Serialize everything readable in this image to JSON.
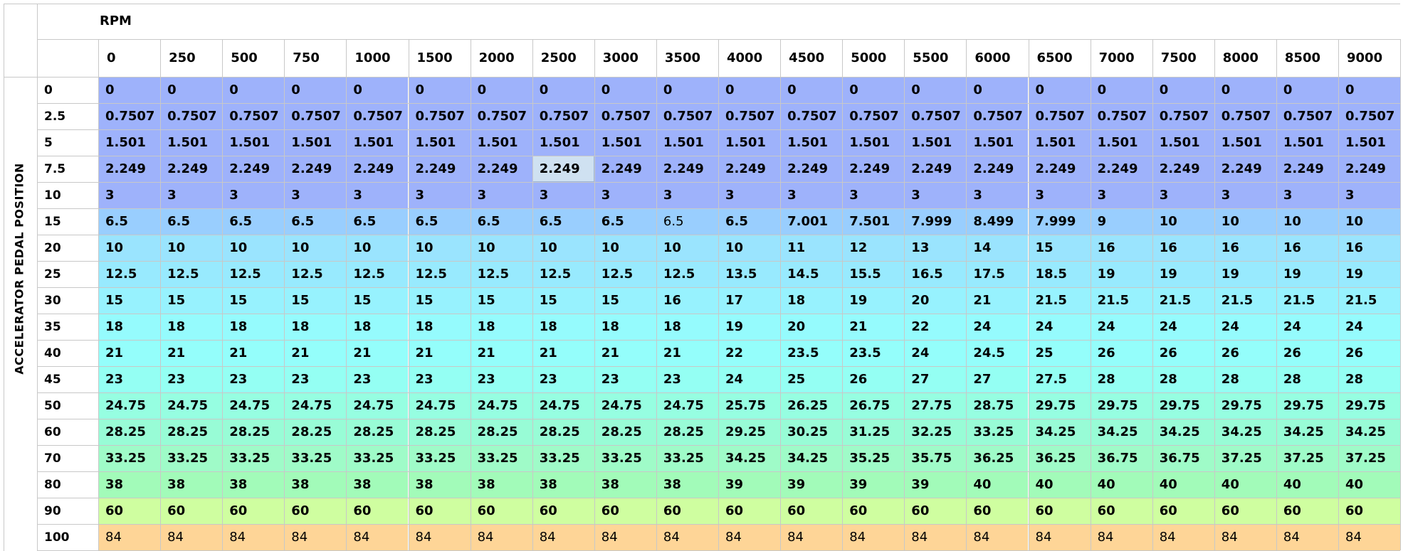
{
  "table": {
    "x_axis_title": "RPM",
    "y_axis_title": "ACCELERATOR PEDAL POSITION",
    "columns": [
      "0",
      "250",
      "500",
      "750",
      "1000",
      "1500",
      "2000",
      "2500",
      "3000",
      "3500",
      "4000",
      "4500",
      "5000",
      "5500",
      "6000",
      "6500",
      "7000",
      "7500",
      "8000",
      "8500",
      "9000"
    ],
    "rows": [
      "0",
      "2.5",
      "5",
      "7.5",
      "10",
      "15",
      "20",
      "25",
      "30",
      "35",
      "40",
      "45",
      "50",
      "60",
      "70",
      "80",
      "90",
      "100"
    ],
    "row_colors": [
      "#9eb2fb",
      "#9eb2fb",
      "#9eb2fb",
      "#9eb2fb",
      "#9eb2fb",
      "#99cefe",
      "#9ae4fe",
      "#98eafe",
      "#97f2fe",
      "#95fbfd",
      "#94fefb",
      "#94fff3",
      "#96fee1",
      "#98fcd6",
      "#9ffbc8",
      "#a2fbb9",
      "#cffea0",
      "#fed597"
    ],
    "cells": [
      [
        "0",
        "0",
        "0",
        "0",
        "0",
        "0",
        "0",
        "0",
        "0",
        "0",
        "0",
        "0",
        "0",
        "0",
        "0",
        "0",
        "0",
        "0",
        "0",
        "0",
        "0"
      ],
      [
        "0.7507",
        "0.7507",
        "0.7507",
        "0.7507",
        "0.7507",
        "0.7507",
        "0.7507",
        "0.7507",
        "0.7507",
        "0.7507",
        "0.7507",
        "0.7507",
        "0.7507",
        "0.7507",
        "0.7507",
        "0.7507",
        "0.7507",
        "0.7507",
        "0.7507",
        "0.7507",
        "0.7507"
      ],
      [
        "1.501",
        "1.501",
        "1.501",
        "1.501",
        "1.501",
        "1.501",
        "1.501",
        "1.501",
        "1.501",
        "1.501",
        "1.501",
        "1.501",
        "1.501",
        "1.501",
        "1.501",
        "1.501",
        "1.501",
        "1.501",
        "1.501",
        "1.501",
        "1.501"
      ],
      [
        "2.249",
        "2.249",
        "2.249",
        "2.249",
        "2.249",
        "2.249",
        "2.249",
        "2.249",
        "2.249",
        "2.249",
        "2.249",
        "2.249",
        "2.249",
        "2.249",
        "2.249",
        "2.249",
        "2.249",
        "2.249",
        "2.249",
        "2.249",
        "2.249"
      ],
      [
        "3",
        "3",
        "3",
        "3",
        "3",
        "3",
        "3",
        "3",
        "3",
        "3",
        "3",
        "3",
        "3",
        "3",
        "3",
        "3",
        "3",
        "3",
        "3",
        "3",
        "3"
      ],
      [
        "6.5",
        "6.5",
        "6.5",
        "6.5",
        "6.5",
        "6.5",
        "6.5",
        "6.5",
        "6.5",
        "6.5",
        "6.5",
        "7.001",
        "7.501",
        "7.999",
        "8.499",
        "7.999",
        "9",
        "10",
        "10",
        "10",
        "10"
      ],
      [
        "10",
        "10",
        "10",
        "10",
        "10",
        "10",
        "10",
        "10",
        "10",
        "10",
        "10",
        "11",
        "12",
        "13",
        "14",
        "15",
        "16",
        "16",
        "16",
        "16",
        "16"
      ],
      [
        "12.5",
        "12.5",
        "12.5",
        "12.5",
        "12.5",
        "12.5",
        "12.5",
        "12.5",
        "12.5",
        "12.5",
        "13.5",
        "14.5",
        "15.5",
        "16.5",
        "17.5",
        "18.5",
        "19",
        "19",
        "19",
        "19",
        "19"
      ],
      [
        "15",
        "15",
        "15",
        "15",
        "15",
        "15",
        "15",
        "15",
        "15",
        "16",
        "17",
        "18",
        "19",
        "20",
        "21",
        "21.5",
        "21.5",
        "21.5",
        "21.5",
        "21.5",
        "21.5"
      ],
      [
        "18",
        "18",
        "18",
        "18",
        "18",
        "18",
        "18",
        "18",
        "18",
        "18",
        "19",
        "20",
        "21",
        "22",
        "24",
        "24",
        "24",
        "24",
        "24",
        "24",
        "24"
      ],
      [
        "21",
        "21",
        "21",
        "21",
        "21",
        "21",
        "21",
        "21",
        "21",
        "21",
        "22",
        "23.5",
        "23.5",
        "24",
        "24.5",
        "25",
        "26",
        "26",
        "26",
        "26",
        "26"
      ],
      [
        "23",
        "23",
        "23",
        "23",
        "23",
        "23",
        "23",
        "23",
        "23",
        "23",
        "24",
        "25",
        "26",
        "27",
        "27",
        "27.5",
        "28",
        "28",
        "28",
        "28",
        "28"
      ],
      [
        "24.75",
        "24.75",
        "24.75",
        "24.75",
        "24.75",
        "24.75",
        "24.75",
        "24.75",
        "24.75",
        "24.75",
        "25.75",
        "26.25",
        "26.75",
        "27.75",
        "28.75",
        "29.75",
        "29.75",
        "29.75",
        "29.75",
        "29.75",
        "29.75"
      ],
      [
        "28.25",
        "28.25",
        "28.25",
        "28.25",
        "28.25",
        "28.25",
        "28.25",
        "28.25",
        "28.25",
        "28.25",
        "29.25",
        "30.25",
        "31.25",
        "32.25",
        "33.25",
        "34.25",
        "34.25",
        "34.25",
        "34.25",
        "34.25",
        "34.25"
      ],
      [
        "33.25",
        "33.25",
        "33.25",
        "33.25",
        "33.25",
        "33.25",
        "33.25",
        "33.25",
        "33.25",
        "33.25",
        "34.25",
        "34.25",
        "35.25",
        "35.75",
        "36.25",
        "36.25",
        "36.75",
        "36.75",
        "37.25",
        "37.25",
        "37.25"
      ],
      [
        "38",
        "38",
        "38",
        "38",
        "38",
        "38",
        "38",
        "38",
        "38",
        "38",
        "39",
        "39",
        "39",
        "39",
        "40",
        "40",
        "40",
        "40",
        "40",
        "40",
        "40"
      ],
      [
        "60",
        "60",
        "60",
        "60",
        "60",
        "60",
        "60",
        "60",
        "60",
        "60",
        "60",
        "60",
        "60",
        "60",
        "60",
        "60",
        "60",
        "60",
        "60",
        "60",
        "60"
      ],
      [
        "84",
        "84",
        "84",
        "84",
        "84",
        "84",
        "84",
        "84",
        "84",
        "84",
        "84",
        "84",
        "84",
        "84",
        "84",
        "84",
        "84",
        "84",
        "84",
        "84",
        "84"
      ]
    ],
    "selected_cell": {
      "row": 3,
      "col": 7,
      "color": "#cfe1f1"
    },
    "normal_weight_cells": [
      [
        5,
        9
      ]
    ],
    "normal_weight_rows": [
      17
    ]
  }
}
